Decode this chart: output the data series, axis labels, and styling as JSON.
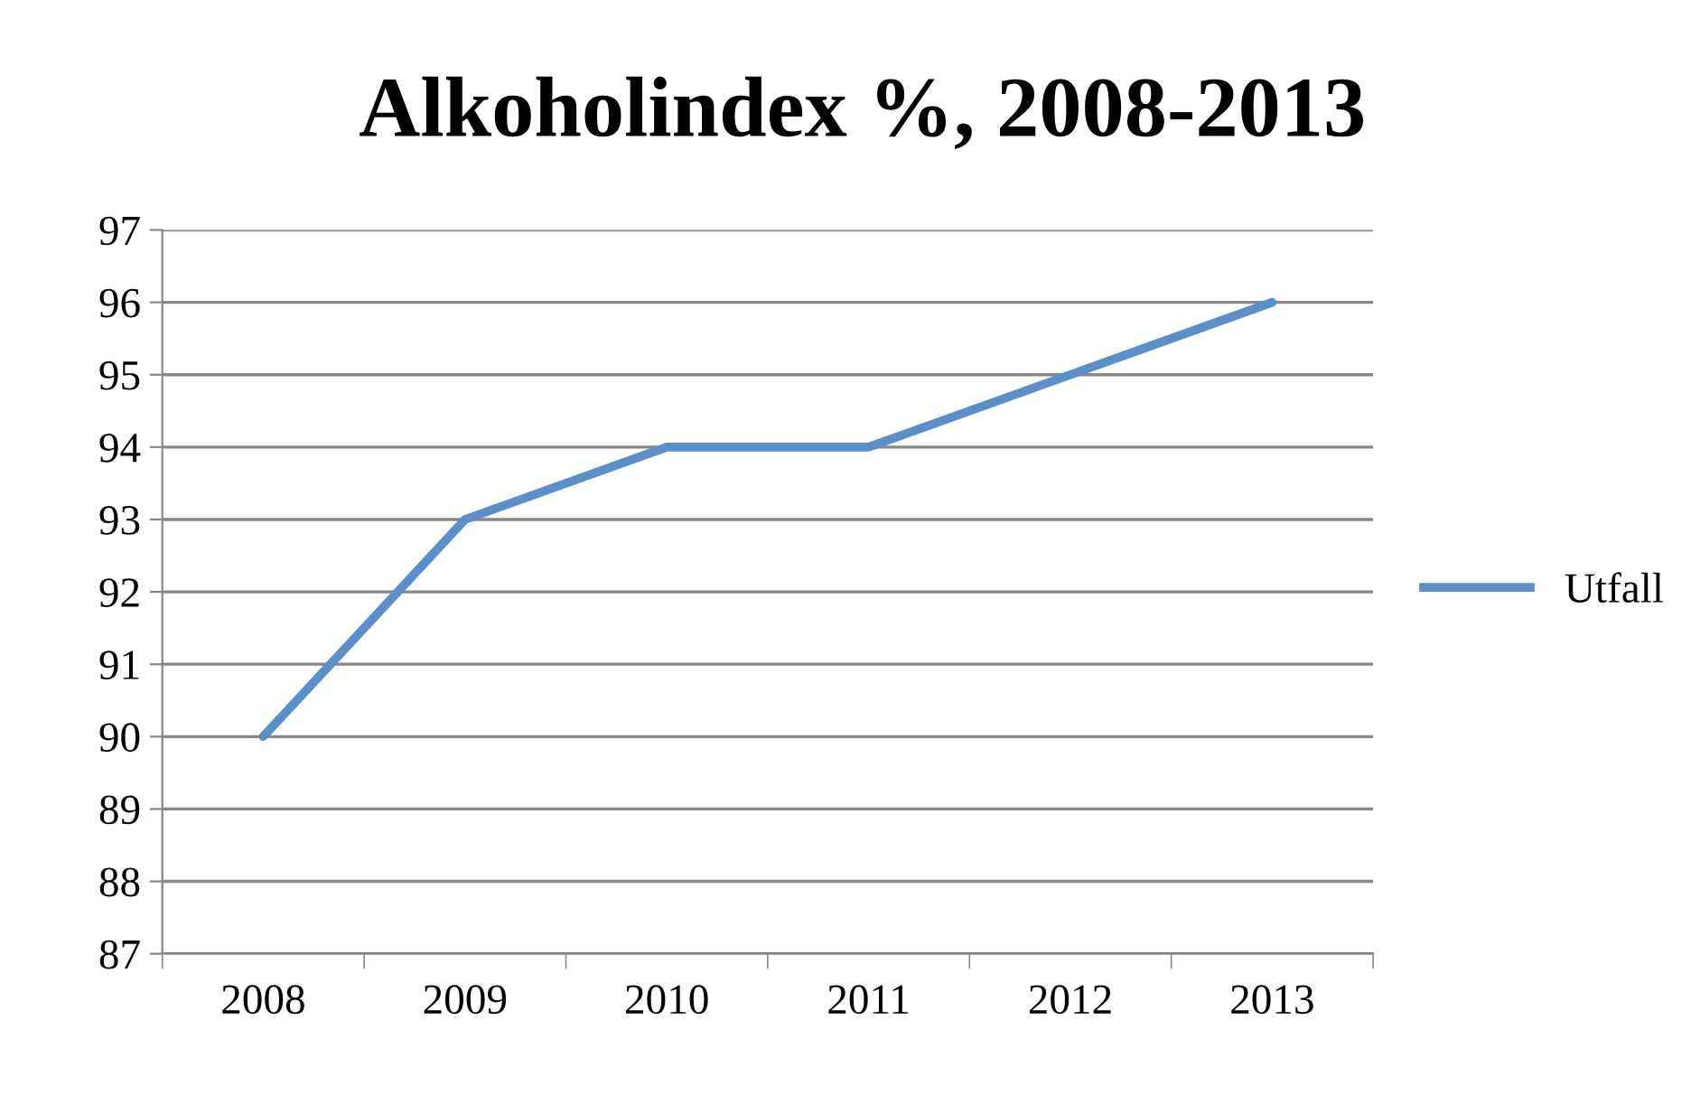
{
  "chart_data": {
    "type": "line",
    "title": "Alkoholindex %, 2008-2013",
    "categories": [
      "2008",
      "2009",
      "2010",
      "2011",
      "2012",
      "2013"
    ],
    "series": [
      {
        "name": "Utfall",
        "color": "#5b8fc9",
        "values": [
          90,
          93,
          94,
          94,
          95,
          96
        ]
      }
    ],
    "ylim": [
      87,
      97
    ],
    "yticks": [
      87,
      88,
      89,
      90,
      91,
      92,
      93,
      94,
      95,
      96,
      97
    ],
    "grid": "y",
    "legend": "right",
    "marker": "none",
    "line_style": "solid"
  }
}
